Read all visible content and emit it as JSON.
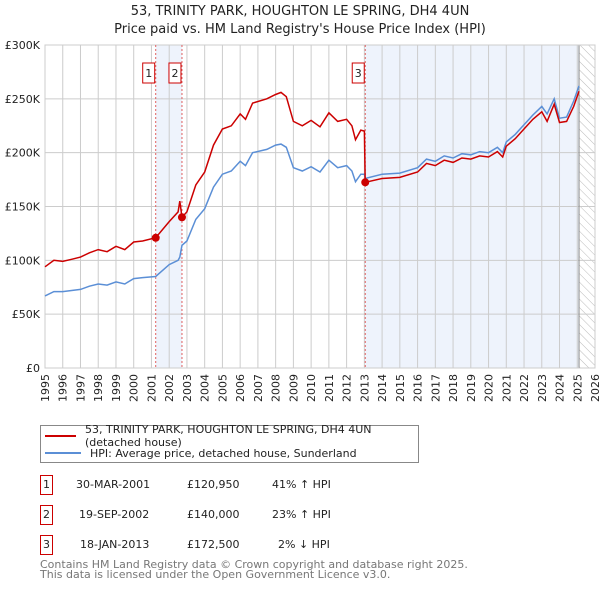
{
  "chart_data": {
    "type": "line",
    "title": "53, TRINITY PARK, HOUGHTON LE SPRING, DH4 4UN",
    "subtitle": "Price paid vs. HM Land Registry's House Price Index (HPI)",
    "xlim": [
      1995,
      2026
    ],
    "ylim": [
      0,
      300000
    ],
    "x_ticks": [
      "1995",
      "1996",
      "1997",
      "1998",
      "1999",
      "2000",
      "2001",
      "2002",
      "2003",
      "2004",
      "2005",
      "2006",
      "2007",
      "2008",
      "2009",
      "2010",
      "2011",
      "2012",
      "2013",
      "2014",
      "2015",
      "2016",
      "2017",
      "2018",
      "2019",
      "2020",
      "2021",
      "2022",
      "2023",
      "2024",
      "2025",
      "2026"
    ],
    "y_ticks": [
      {
        "v": 0,
        "label": "£0"
      },
      {
        "v": 50000,
        "label": "£50K"
      },
      {
        "v": 100000,
        "label": "£100K"
      },
      {
        "v": 150000,
        "label": "£150K"
      },
      {
        "v": 200000,
        "label": "£200K"
      },
      {
        "v": 250000,
        "label": "£250K"
      },
      {
        "v": 300000,
        "label": "£300K"
      }
    ],
    "grid": true,
    "data_end_year": 2025.1,
    "colors": {
      "price": "#cc0000",
      "hpi": "#5b8fd6",
      "shade": "#eef3fc",
      "marker_line": "#e06060"
    },
    "points_x": [
      1995,
      1995.5,
      1996,
      1996.5,
      1997,
      1997.5,
      1998,
      1998.5,
      1999,
      1999.5,
      2000,
      2000.5,
      2001.24,
      2002,
      2002.5,
      2002.6,
      2002.72,
      2003,
      2003.5,
      2004,
      2004.5,
      2005,
      2005.5,
      2006,
      2006.3,
      2006.7,
      2007.5,
      2008,
      2008.3,
      2008.6,
      2009,
      2009.5,
      2010,
      2010.5,
      2011,
      2011.5,
      2012,
      2012.3,
      2012.5,
      2012.8,
      2013.0,
      2013.05,
      2014,
      2015,
      2016,
      2016.5,
      2017,
      2017.5,
      2018,
      2018.5,
      2019,
      2019.5,
      2020,
      2020.5,
      2020.8,
      2021,
      2021.5,
      2022,
      2022.5,
      2023,
      2023.3,
      2023.7,
      2024,
      2024.4,
      2024.8,
      2025.1
    ],
    "series": [
      {
        "name": "53, TRINITY PARK, HOUGHTON LE SPRING, DH4 4UN (detached house)",
        "key": "price",
        "values": [
          94,
          100,
          99,
          101,
          103,
          107,
          110,
          108,
          113,
          110,
          117,
          118,
          121,
          136,
          145,
          155,
          140,
          145,
          170,
          182,
          207,
          222,
          225,
          236,
          231,
          246,
          250,
          254,
          256,
          252,
          229,
          225,
          230,
          224,
          237,
          229,
          231,
          225,
          212,
          221,
          220,
          172.5,
          176,
          177,
          182,
          190,
          188,
          193,
          191,
          195,
          194,
          197,
          196,
          201,
          196,
          206,
          213,
          222,
          231,
          238,
          229,
          245,
          228,
          229,
          243,
          257
        ]
      },
      {
        "name": "HPI: Average price, detached house, Sunderland",
        "key": "hpi",
        "values": [
          67,
          71,
          71,
          72,
          73,
          76,
          78,
          77,
          80,
          78,
          83,
          84,
          85,
          96,
          100,
          103,
          114,
          118,
          138,
          148,
          168,
          180,
          183,
          192,
          188,
          200,
          203,
          207,
          208,
          205,
          186,
          183,
          187,
          182,
          193,
          186,
          188,
          183,
          173,
          180,
          180,
          176,
          180,
          181,
          186,
          194,
          192,
          197,
          195,
          199,
          198,
          201,
          200,
          205,
          200,
          210,
          217,
          226,
          235,
          243,
          236,
          250,
          232,
          233,
          248,
          262
        ]
      }
    ],
    "value_unit": "thousand GBP",
    "sales": [
      {
        "id": "1",
        "year": 2001.24,
        "price": 120950,
        "date": "30-MAR-2001",
        "price_label": "£120,950",
        "hpi": "41% ↑ HPI"
      },
      {
        "id": "2",
        "year": 2002.72,
        "price": 140000,
        "date": "19-SEP-2002",
        "price_label": "£140,000",
        "hpi": "23% ↑ HPI"
      },
      {
        "id": "3",
        "year": 2013.05,
        "price": 172500,
        "date": "18-JAN-2013",
        "price_label": "£172,500",
        "hpi": "2% ↓ HPI"
      }
    ]
  },
  "legend": {
    "price": "53, TRINITY PARK, HOUGHTON LE SPRING, DH4 4UN (detached house)",
    "hpi": "HPI: Average price, detached house, Sunderland"
  },
  "footer": {
    "line1": "Contains HM Land Registry data © Crown copyright and database right 2025.",
    "line2": "This data is licensed under the Open Government Licence v3.0."
  }
}
